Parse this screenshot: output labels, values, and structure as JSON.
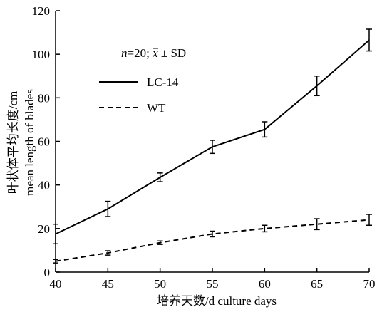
{
  "chart_data": {
    "type": "line",
    "x": [
      40,
      45,
      50,
      55,
      60,
      65,
      70
    ],
    "xlim": [
      40,
      70
    ],
    "ylim": [
      0,
      120
    ],
    "xticks": [
      "40",
      "45",
      "50",
      "55",
      "60",
      "65",
      "70"
    ],
    "yticks": [
      "0",
      "20",
      "40",
      "60",
      "80",
      "100",
      "120"
    ],
    "xlabel": "培养天数/d culture days",
    "ylabel_cn": "叶状体平均长度/cm",
    "ylabel_en": "mean length of blades",
    "stats_label": {
      "n_italic": "n",
      "n_rest": "=20; ",
      "xbar": "x",
      "sd_rest": " ± SD"
    },
    "grid": false,
    "legend_position": "top-left",
    "series": [
      {
        "name": "LC-14",
        "style": "solid",
        "values": [
          17.5,
          29,
          43.5,
          57.5,
          65.5,
          85.5,
          106.5
        ],
        "errors": [
          4.5,
          3.5,
          2,
          3,
          3.5,
          4.5,
          5
        ]
      },
      {
        "name": "WT",
        "style": "dashed",
        "values": [
          5,
          8.8,
          13.5,
          17.5,
          20,
          22,
          24
        ],
        "errors": [
          0.8,
          1,
          0.8,
          1.3,
          1.5,
          2.5,
          2.5
        ]
      }
    ],
    "colors": {
      "line": "#000000",
      "background": "#ffffff"
    }
  }
}
